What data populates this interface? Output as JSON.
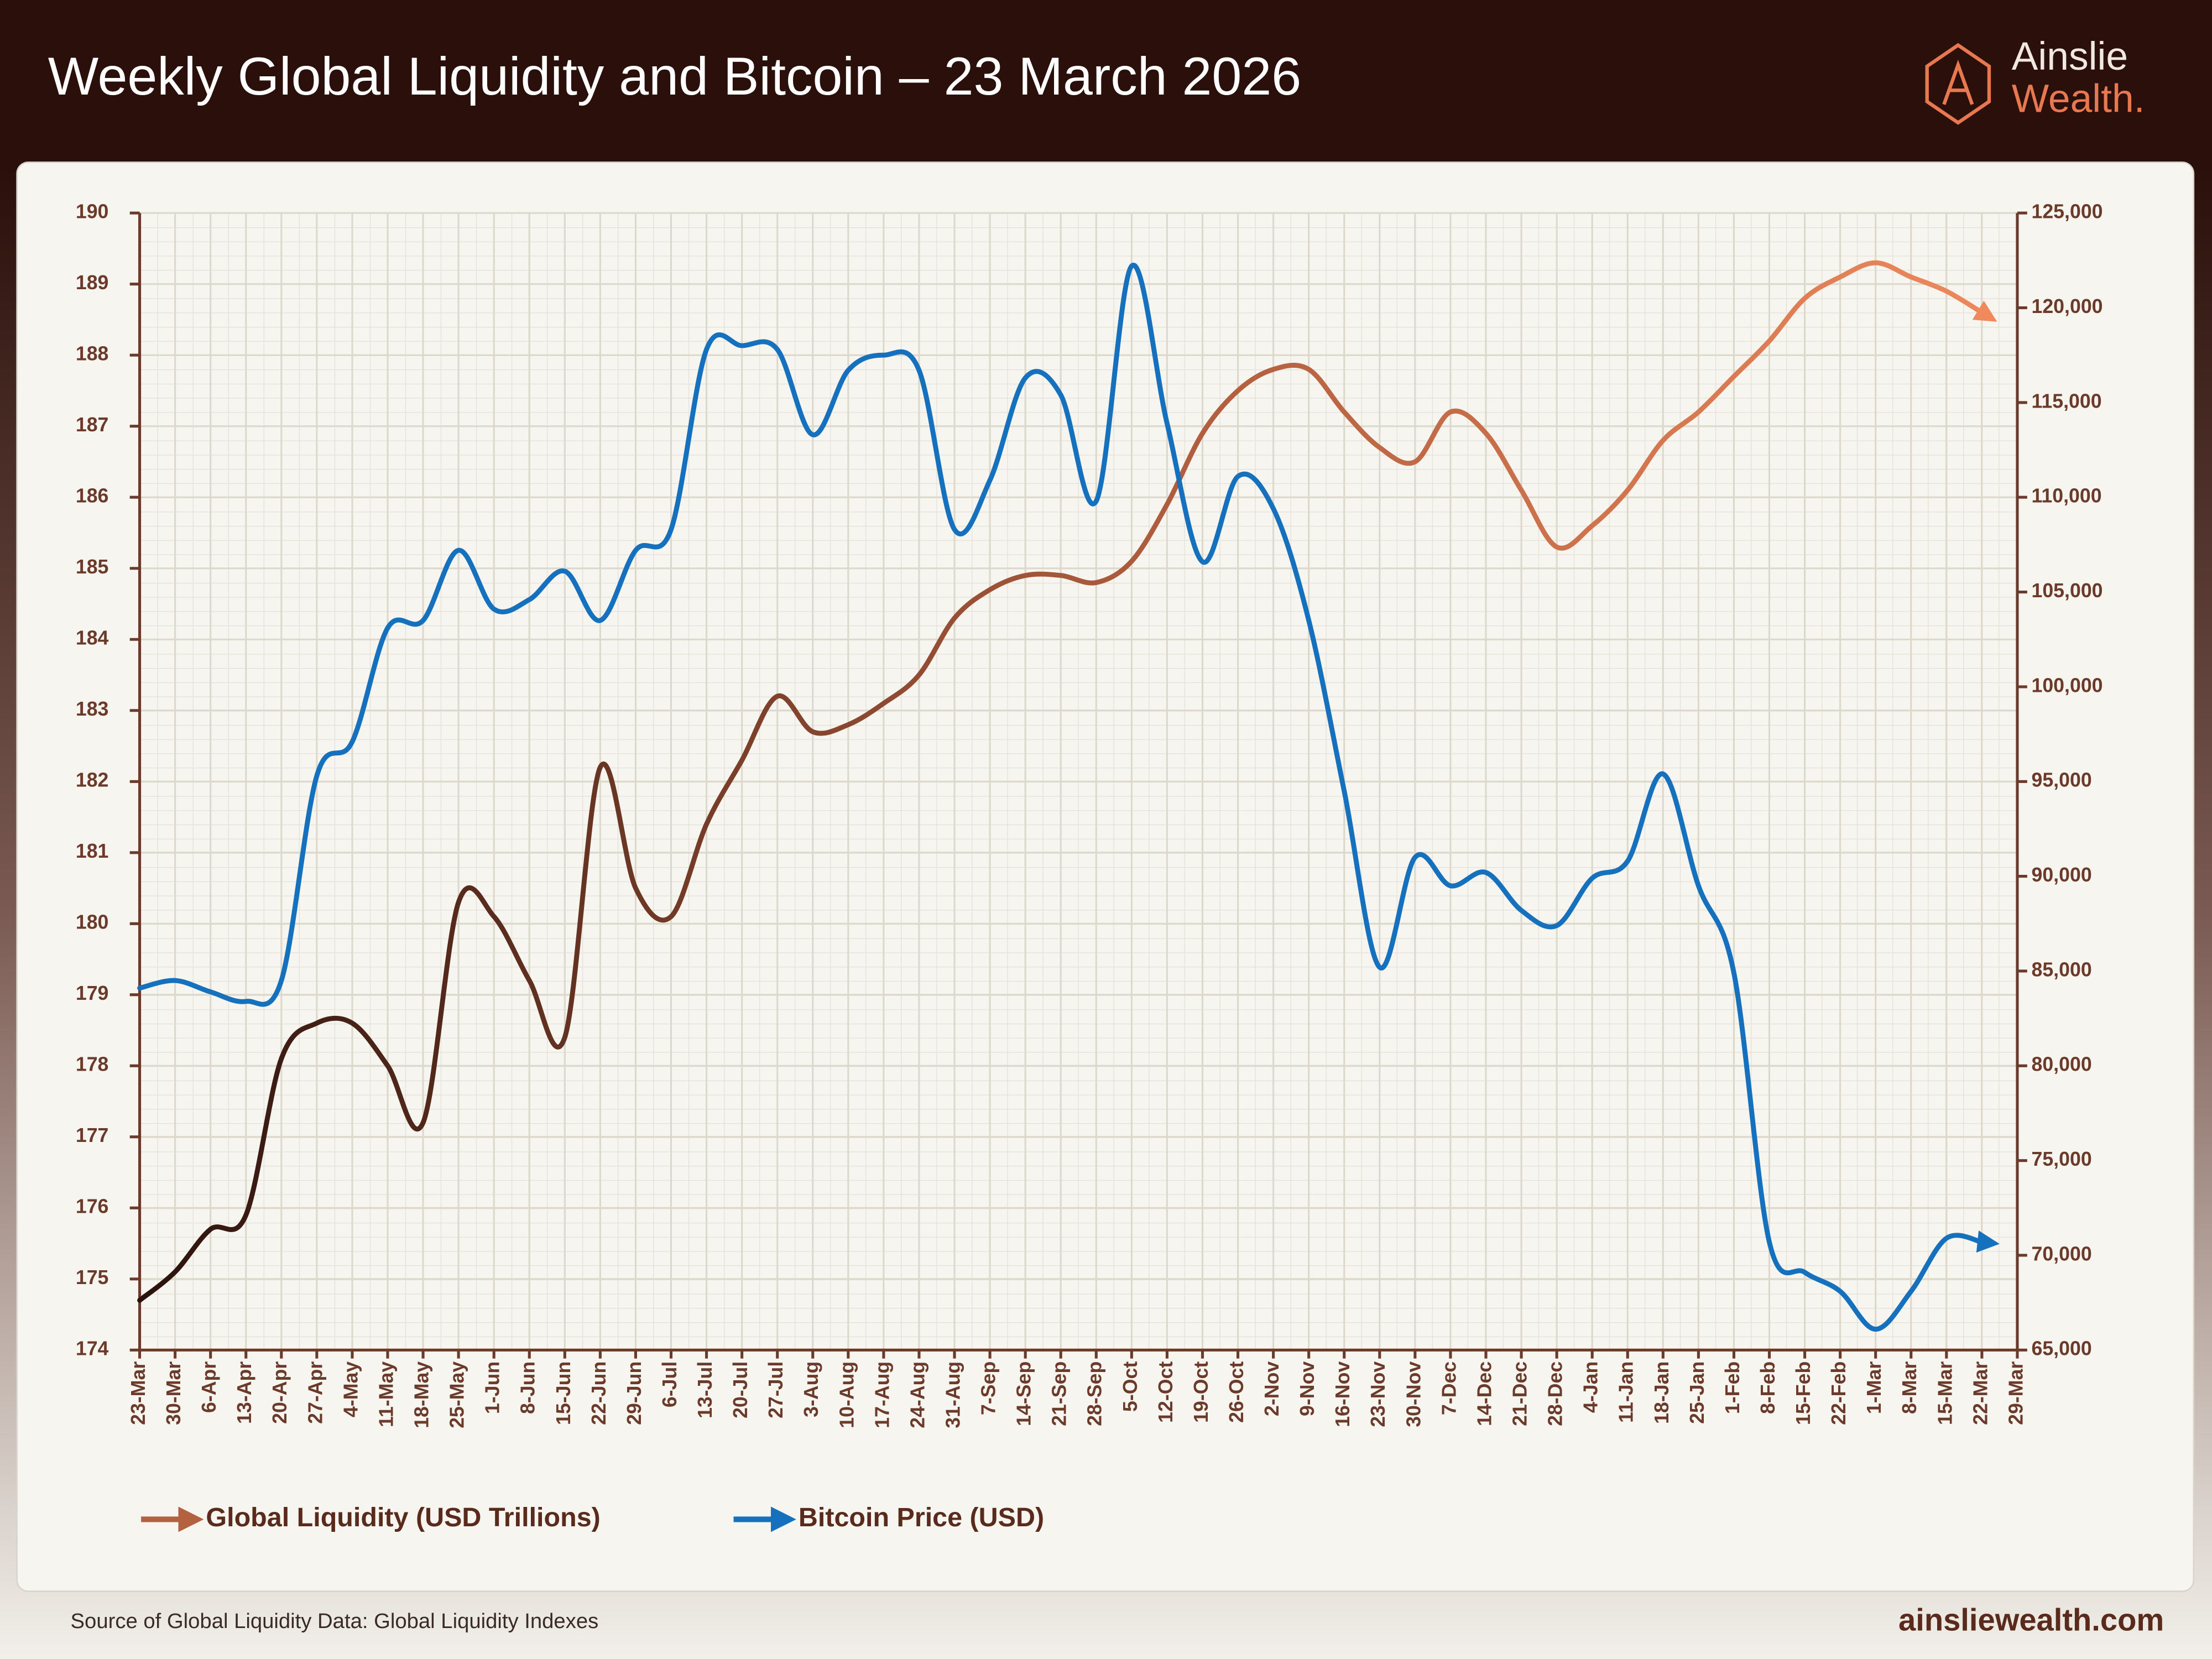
{
  "header": {
    "title": "Weekly Global Liquidity and Bitcoin – 23 March 2026",
    "logo_top": "Ainslie",
    "logo_bottom": "Wealth."
  },
  "footer": {
    "source": "Source of Global Liquidity Data: Global Liquidity Indexes",
    "url": "ainsliewealth.com"
  },
  "chart_data": {
    "type": "line",
    "categories": [
      "23-Mar",
      "30-Mar",
      "6-Apr",
      "13-Apr",
      "20-Apr",
      "27-Apr",
      "4-May",
      "11-May",
      "18-May",
      "25-May",
      "1-Jun",
      "8-Jun",
      "15-Jun",
      "22-Jun",
      "29-Jun",
      "6-Jul",
      "13-Jul",
      "20-Jul",
      "27-Jul",
      "3-Aug",
      "10-Aug",
      "17-Aug",
      "24-Aug",
      "31-Aug",
      "7-Sep",
      "14-Sep",
      "21-Sep",
      "28-Sep",
      "5-Oct",
      "12-Oct",
      "19-Oct",
      "26-Oct",
      "2-Nov",
      "9-Nov",
      "16-Nov",
      "23-Nov",
      "30-Nov",
      "7-Dec",
      "14-Dec",
      "21-Dec",
      "28-Dec",
      "4-Jan",
      "11-Jan",
      "18-Jan",
      "25-Jan",
      "1-Feb",
      "8-Feb",
      "15-Feb",
      "22-Feb",
      "1-Mar",
      "8-Mar",
      "15-Mar",
      "22-Mar",
      "29-Mar"
    ],
    "series": [
      {
        "name": "Global Liquidity (USD Trillions)",
        "color": "#b4613f",
        "gradient": [
          "#2b120d",
          "#a8583a",
          "#f08a5d"
        ],
        "values": [
          174.7,
          175.1,
          175.7,
          175.9,
          178.1,
          178.6,
          178.6,
          178.0,
          177.2,
          180.3,
          180.1,
          179.2,
          178.4,
          182.2,
          180.5,
          180.1,
          181.4,
          182.3,
          183.2,
          182.7,
          182.8,
          183.1,
          183.5,
          184.3,
          184.7,
          184.9,
          184.9,
          184.8,
          185.1,
          185.9,
          186.9,
          187.5,
          187.8,
          187.8,
          187.2,
          186.7,
          186.5,
          187.2,
          186.9,
          186.1,
          185.3,
          185.6,
          186.1,
          186.8,
          187.2,
          187.7,
          188.2,
          188.8,
          189.1,
          189.3,
          189.1,
          188.9,
          188.6,
          null
        ]
      },
      {
        "name": "Bitcoin Price (USD)",
        "color": "#1570bd",
        "axis": "y2",
        "values": [
          84100,
          84500,
          83900,
          83400,
          84500,
          95300,
          97100,
          103100,
          103500,
          107200,
          104100,
          104600,
          106100,
          103500,
          107200,
          108300,
          117800,
          118000,
          117800,
          113300,
          116700,
          117500,
          116700,
          108300,
          110900,
          116300,
          115400,
          109800,
          122200,
          113900,
          106600,
          111100,
          109400,
          103500,
          94500,
          85200,
          91000,
          89500,
          90200,
          88200,
          87400,
          89900,
          90800,
          95400,
          89500,
          84900,
          70700,
          69100,
          68100,
          66100,
          68100,
          70900,
          70700,
          null
        ]
      }
    ],
    "ylim": [
      174,
      190
    ],
    "yticks": [
      174,
      175,
      176,
      177,
      178,
      179,
      180,
      181,
      182,
      183,
      184,
      185,
      186,
      187,
      188,
      189,
      190
    ],
    "y2lim": [
      65000,
      125000
    ],
    "y2ticks": [
      {
        "value": 65000,
        "label": "65,000"
      },
      {
        "value": 70000,
        "label": "70,000"
      },
      {
        "value": 75000,
        "label": "75,000"
      },
      {
        "value": 80000,
        "label": "80,000"
      },
      {
        "value": 85000,
        "label": "85,000"
      },
      {
        "value": 90000,
        "label": "90,000"
      },
      {
        "value": 95000,
        "label": "95,000"
      },
      {
        "value": 100000,
        "label": "100,000"
      },
      {
        "value": 105000,
        "label": "105,000"
      },
      {
        "value": 110000,
        "label": "110,000"
      },
      {
        "value": 115000,
        "label": "115,000"
      },
      {
        "value": 120000,
        "label": "120,000"
      },
      {
        "value": 125000,
        "label": "125,000"
      }
    ],
    "grid": true,
    "legend": "bottom-left"
  }
}
